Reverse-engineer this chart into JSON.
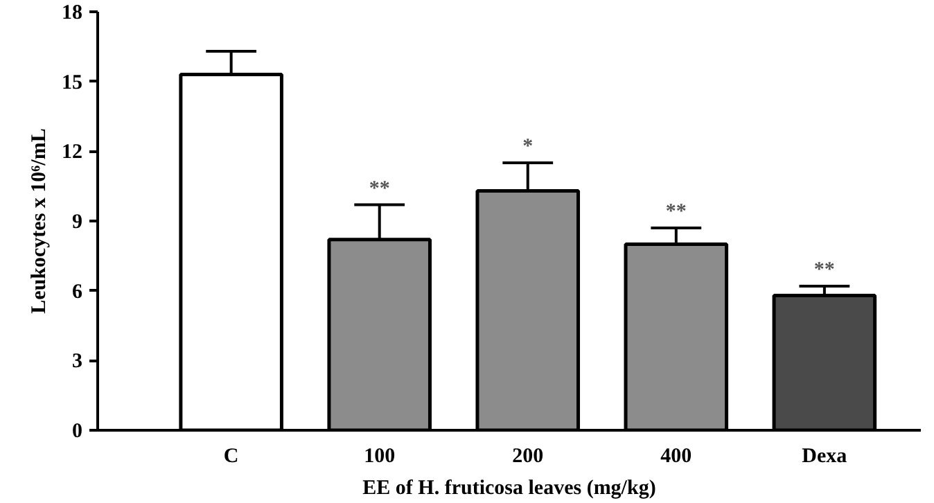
{
  "chart_data": {
    "type": "bar",
    "ylabel": "Leukocytes x 10⁶/mL",
    "xlabel": "EE of H. fruticosa leaves (mg/kg)",
    "categories": [
      "C",
      "100",
      "200",
      "400",
      "Dexa"
    ],
    "values": [
      15.3,
      8.2,
      10.3,
      8.0,
      5.8
    ],
    "errors": [
      [
        15.3,
        16.3
      ],
      [
        8.2,
        9.7
      ],
      [
        10.3,
        11.5
      ],
      [
        8.0,
        8.7
      ],
      [
        5.8,
        6.2
      ]
    ],
    "colors": [
      "#ffffff",
      "#8c8c8c",
      "#8c8c8c",
      "#8c8c8c",
      "#4a4a4a"
    ],
    "ylim": [
      0,
      18
    ],
    "yticks": [
      0,
      3,
      6,
      9,
      12,
      15,
      18
    ],
    "grid": false,
    "annotations": [
      {
        "text": "**",
        "x": "100",
        "y": 9.9
      },
      {
        "text": "*",
        "x": "200",
        "y": 11.7
      },
      {
        "text": "**",
        "x": "400",
        "y": 8.9
      },
      {
        "text": "**",
        "x": "Dexa",
        "y": 6.4
      }
    ]
  }
}
